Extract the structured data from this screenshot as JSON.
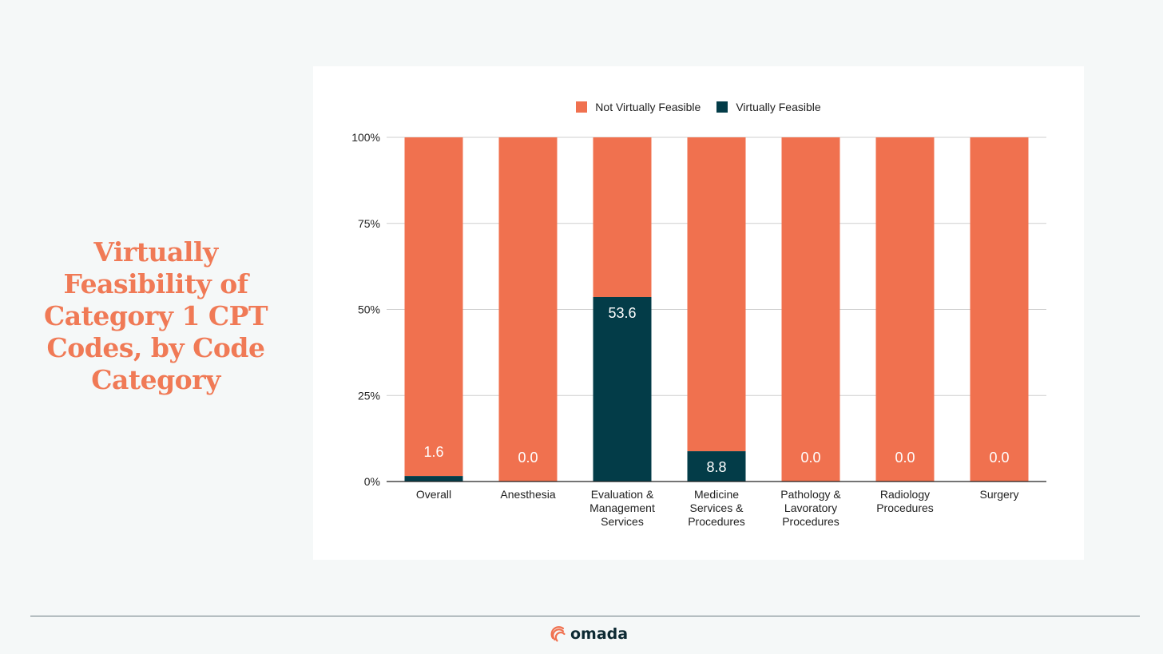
{
  "title": "Virtually Feasibility of Category 1 CPT Codes, by Code Category",
  "brand": {
    "name": "omada",
    "logo_icon": "omada-swirl-icon"
  },
  "colors": {
    "not_feasible": "#f0714f",
    "feasible": "#033c48",
    "title": "#f07a56"
  },
  "chart_data": {
    "type": "bar",
    "stacked": true,
    "percent_stacked": true,
    "categories": [
      [
        "Overall"
      ],
      [
        "Anesthesia"
      ],
      [
        "Evaluation &",
        "Management",
        "Services"
      ],
      [
        "Medicine",
        "Services &",
        "Procedures"
      ],
      [
        "Pathology &",
        "Lavoratory",
        "Procedures"
      ],
      [
        "Radiology",
        "Procedures"
      ],
      [
        "Surgery"
      ]
    ],
    "series": [
      {
        "name": "Not Virtually Feasible",
        "color": "#f0714f",
        "values": [
          98.4,
          100,
          46.4,
          91.2,
          100,
          100,
          100
        ]
      },
      {
        "name": "Virtually Feasible",
        "color": "#033c48",
        "values": [
          1.6,
          0.0,
          53.6,
          8.8,
          0.0,
          0.0,
          0.0
        ]
      }
    ],
    "data_labels": [
      "1.6",
      "0.0",
      "53.6",
      "8.8",
      "0.0",
      "0.0",
      "0.0"
    ],
    "ylim": [
      0,
      100
    ],
    "yticks": [
      "0%",
      "25%",
      "50%",
      "75%",
      "100%"
    ],
    "grid": true,
    "legend": "top-center"
  }
}
